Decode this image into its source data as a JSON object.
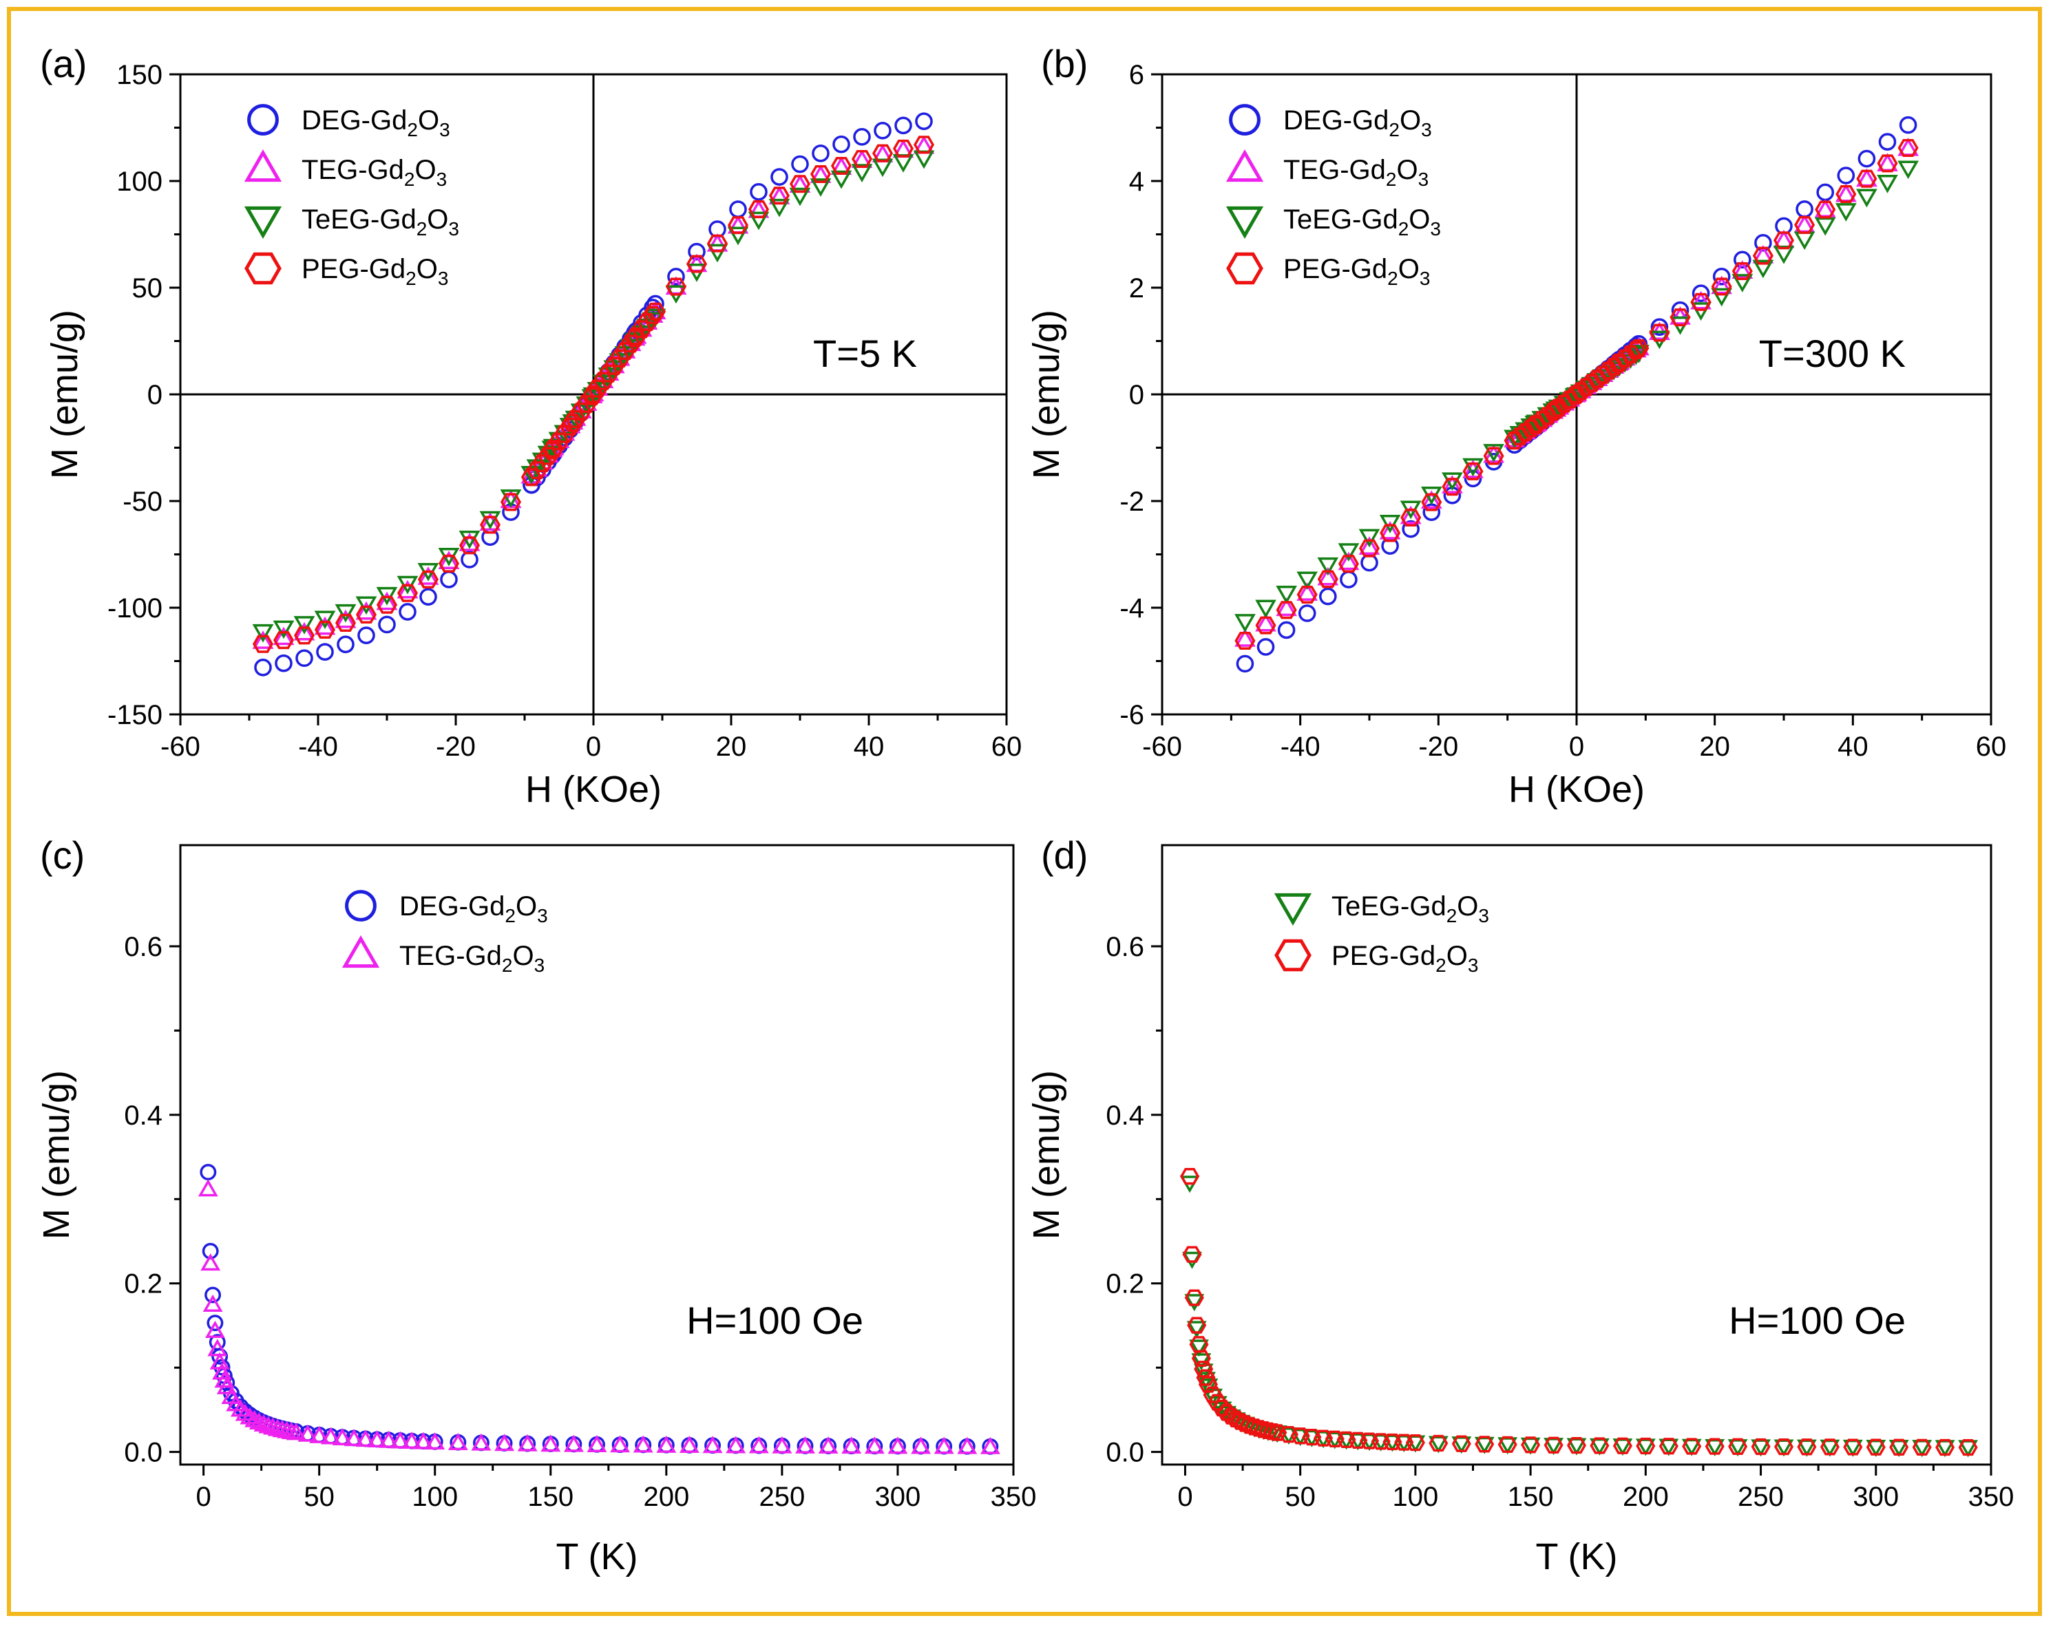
{
  "colors": {
    "DEG": "#1f1fe0",
    "TEG": "#ee22ee",
    "TeEG": "#158015",
    "PEG": "#ee1111",
    "frame": "#f2b81d"
  },
  "chart_data": [
    {
      "id": "a",
      "panel_label": "(a)",
      "type": "scatter",
      "xlabel": "H (KOe)",
      "ylabel": "M (emu/g)",
      "xlim": [
        -60,
        60
      ],
      "ylim": [
        -150,
        150
      ],
      "xticks": [
        -60,
        -40,
        -20,
        0,
        20,
        40,
        60
      ],
      "yticks": [
        -150,
        -100,
        -50,
        0,
        50,
        100,
        150
      ],
      "zero_lines": true,
      "annotation": "T=5 K",
      "legend": [
        {
          "key": "DEG",
          "base": "DEG-Gd",
          "sub1": "2",
          "mid": "O",
          "sub2": "3",
          "marker": "circle"
        },
        {
          "key": "TEG",
          "base": "TEG-Gd",
          "sub1": "2",
          "mid": "O",
          "sub2": "3",
          "marker": "triangle-up"
        },
        {
          "key": "TeEG",
          "base": "TeEG-Gd",
          "sub1": "2",
          "mid": "O",
          "sub2": "3",
          "marker": "triangle-down"
        },
        {
          "key": "PEG",
          "base": "PEG-Gd",
          "sub1": "2",
          "mid": "O",
          "sub2": "3",
          "marker": "hexagon"
        }
      ],
      "series": [
        {
          "key": "DEG",
          "model": "MH5",
          "scale": 128,
          "x_range": [
            -48,
            48
          ]
        },
        {
          "key": "TEG",
          "model": "MH5",
          "scale": 116,
          "x_range": [
            -48,
            48
          ]
        },
        {
          "key": "TeEG",
          "model": "MH5",
          "scale": 111,
          "x_range": [
            -48,
            48
          ]
        },
        {
          "key": "PEG",
          "model": "MH5",
          "scale": 117,
          "x_range": [
            -48,
            48
          ]
        }
      ],
      "series_draw_order": [
        "DEG",
        "TEG",
        "TeEG",
        "PEG"
      ]
    },
    {
      "id": "b",
      "panel_label": "(b)",
      "type": "scatter",
      "xlabel": "H (KOe)",
      "ylabel": "M (emu/g)",
      "xlim": [
        -60,
        60
      ],
      "ylim": [
        -6,
        6
      ],
      "xticks": [
        -60,
        -40,
        -20,
        0,
        20,
        40,
        60
      ],
      "yticks": [
        -6,
        -4,
        -2,
        0,
        2,
        4,
        6
      ],
      "zero_lines": true,
      "annotation": "T=300 K",
      "legend": [
        {
          "key": "DEG",
          "base": "DEG-Gd",
          "sub1": "2",
          "mid": "O",
          "sub2": "3",
          "marker": "circle"
        },
        {
          "key": "TEG",
          "base": "TEG-Gd",
          "sub1": "2",
          "mid": "O",
          "sub2": "3",
          "marker": "triangle-up"
        },
        {
          "key": "TeEG",
          "base": "TeEG-Gd",
          "sub1": "2",
          "mid": "O",
          "sub2": "3",
          "marker": "triangle-down"
        },
        {
          "key": "PEG",
          "base": "PEG-Gd",
          "sub1": "2",
          "mid": "O",
          "sub2": "3",
          "marker": "hexagon"
        }
      ],
      "series": [
        {
          "key": "DEG",
          "model": "linear",
          "scale": 5.05,
          "x_range": [
            -48,
            48
          ]
        },
        {
          "key": "TEG",
          "model": "linear",
          "scale": 4.6,
          "x_range": [
            -48,
            48
          ]
        },
        {
          "key": "TeEG",
          "model": "linear",
          "scale": 4.25,
          "x_range": [
            -48,
            48
          ]
        },
        {
          "key": "PEG",
          "model": "linear",
          "scale": 4.62,
          "x_range": [
            -48,
            48
          ]
        }
      ],
      "series_draw_order": [
        "DEG",
        "TEG",
        "TeEG",
        "PEG"
      ]
    },
    {
      "id": "c",
      "panel_label": "(c)",
      "type": "scatter",
      "xlabel": "T (K)",
      "ylabel": "M (emu/g)",
      "xlim": [
        -10,
        350
      ],
      "ylim": [
        -0.015,
        0.72
      ],
      "xticks": [
        0,
        50,
        100,
        150,
        200,
        250,
        300,
        350
      ],
      "yticks": [
        0.0,
        0.2,
        0.4,
        0.6
      ],
      "ytick_labels": [
        "0.0",
        "0.2",
        "0.4",
        "0.6"
      ],
      "zero_lines": false,
      "annotation": "H=100 Oe",
      "legend": [
        {
          "key": "DEG",
          "base": "DEG-Gd",
          "sub1": "2",
          "mid": "O",
          "sub2": "3",
          "marker": "circle"
        },
        {
          "key": "TEG",
          "base": "TEG-Gd",
          "sub1": "2",
          "mid": "O",
          "sub2": "3",
          "marker": "triangle-up"
        }
      ],
      "series": [
        {
          "key": "DEG",
          "model": "curie",
          "C": 1.64,
          "theta": 0.5,
          "offset": 0.004
        },
        {
          "key": "TEG",
          "model": "curie",
          "C": 1.54,
          "theta": 0.5,
          "offset": 0.003
        }
      ],
      "series_draw_order": [
        "DEG",
        "TEG"
      ]
    },
    {
      "id": "d",
      "panel_label": "(d)",
      "type": "scatter",
      "xlabel": "T (K)",
      "ylabel": "M (emu/g)",
      "xlim": [
        -10,
        350
      ],
      "ylim": [
        -0.015,
        0.72
      ],
      "xticks": [
        0,
        50,
        100,
        150,
        200,
        250,
        300,
        350
      ],
      "yticks": [
        0.0,
        0.2,
        0.4,
        0.6
      ],
      "ytick_labels": [
        "0.0",
        "0.2",
        "0.4",
        "0.6"
      ],
      "zero_lines": false,
      "annotation": "H=100 Oe",
      "legend": [
        {
          "key": "TeEG",
          "base": "TeEG-Gd",
          "sub1": "2",
          "mid": "O",
          "sub2": "3",
          "marker": "triangle-down"
        },
        {
          "key": "PEG",
          "base": "PEG-Gd",
          "sub1": "2",
          "mid": "O",
          "sub2": "3",
          "marker": "hexagon"
        }
      ],
      "series": [
        {
          "key": "TeEG",
          "model": "curie",
          "C": 1.58,
          "theta": 0.5,
          "offset": 0.004
        },
        {
          "key": "PEG",
          "model": "curie",
          "C": 1.62,
          "theta": 0.5,
          "offset": 0.003
        }
      ],
      "series_draw_order": [
        "TeEG",
        "PEG"
      ]
    }
  ]
}
